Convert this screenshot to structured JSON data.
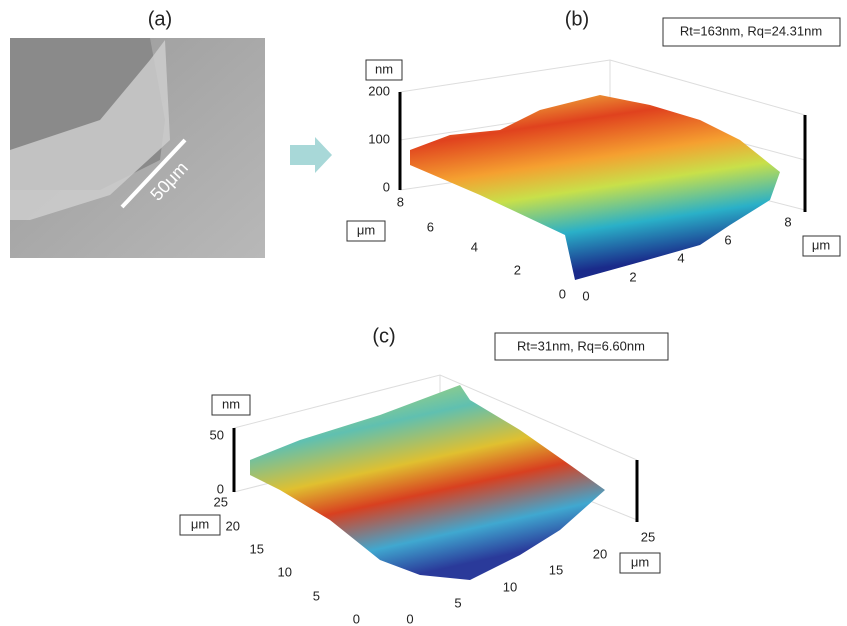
{
  "panels": [
    {
      "label": "(a)",
      "scale_bar": "50μm"
    },
    {
      "label": "(b)",
      "stats": "Rt=163nm, Rq=24.31nm",
      "z_unit": "nm",
      "y_unit": "μm",
      "x_unit": "μm",
      "z_ticks": [
        "200",
        "100",
        "0"
      ],
      "y_ticks": [
        "8",
        "6",
        "4",
        "2",
        "0"
      ],
      "x_ticks": [
        "0",
        "2",
        "4",
        "6",
        "8"
      ]
    },
    {
      "label": "(c)",
      "stats": "Rt=31nm, Rq=6.60nm",
      "z_unit": "nm",
      "y_unit": "μm",
      "x_unit": "μm",
      "z_ticks": [
        "50",
        "0"
      ],
      "y_ticks": [
        "25",
        "20",
        "15",
        "10",
        "5",
        "0"
      ],
      "x_ticks": [
        "0",
        "5",
        "10",
        "15",
        "20",
        "25"
      ]
    }
  ]
}
